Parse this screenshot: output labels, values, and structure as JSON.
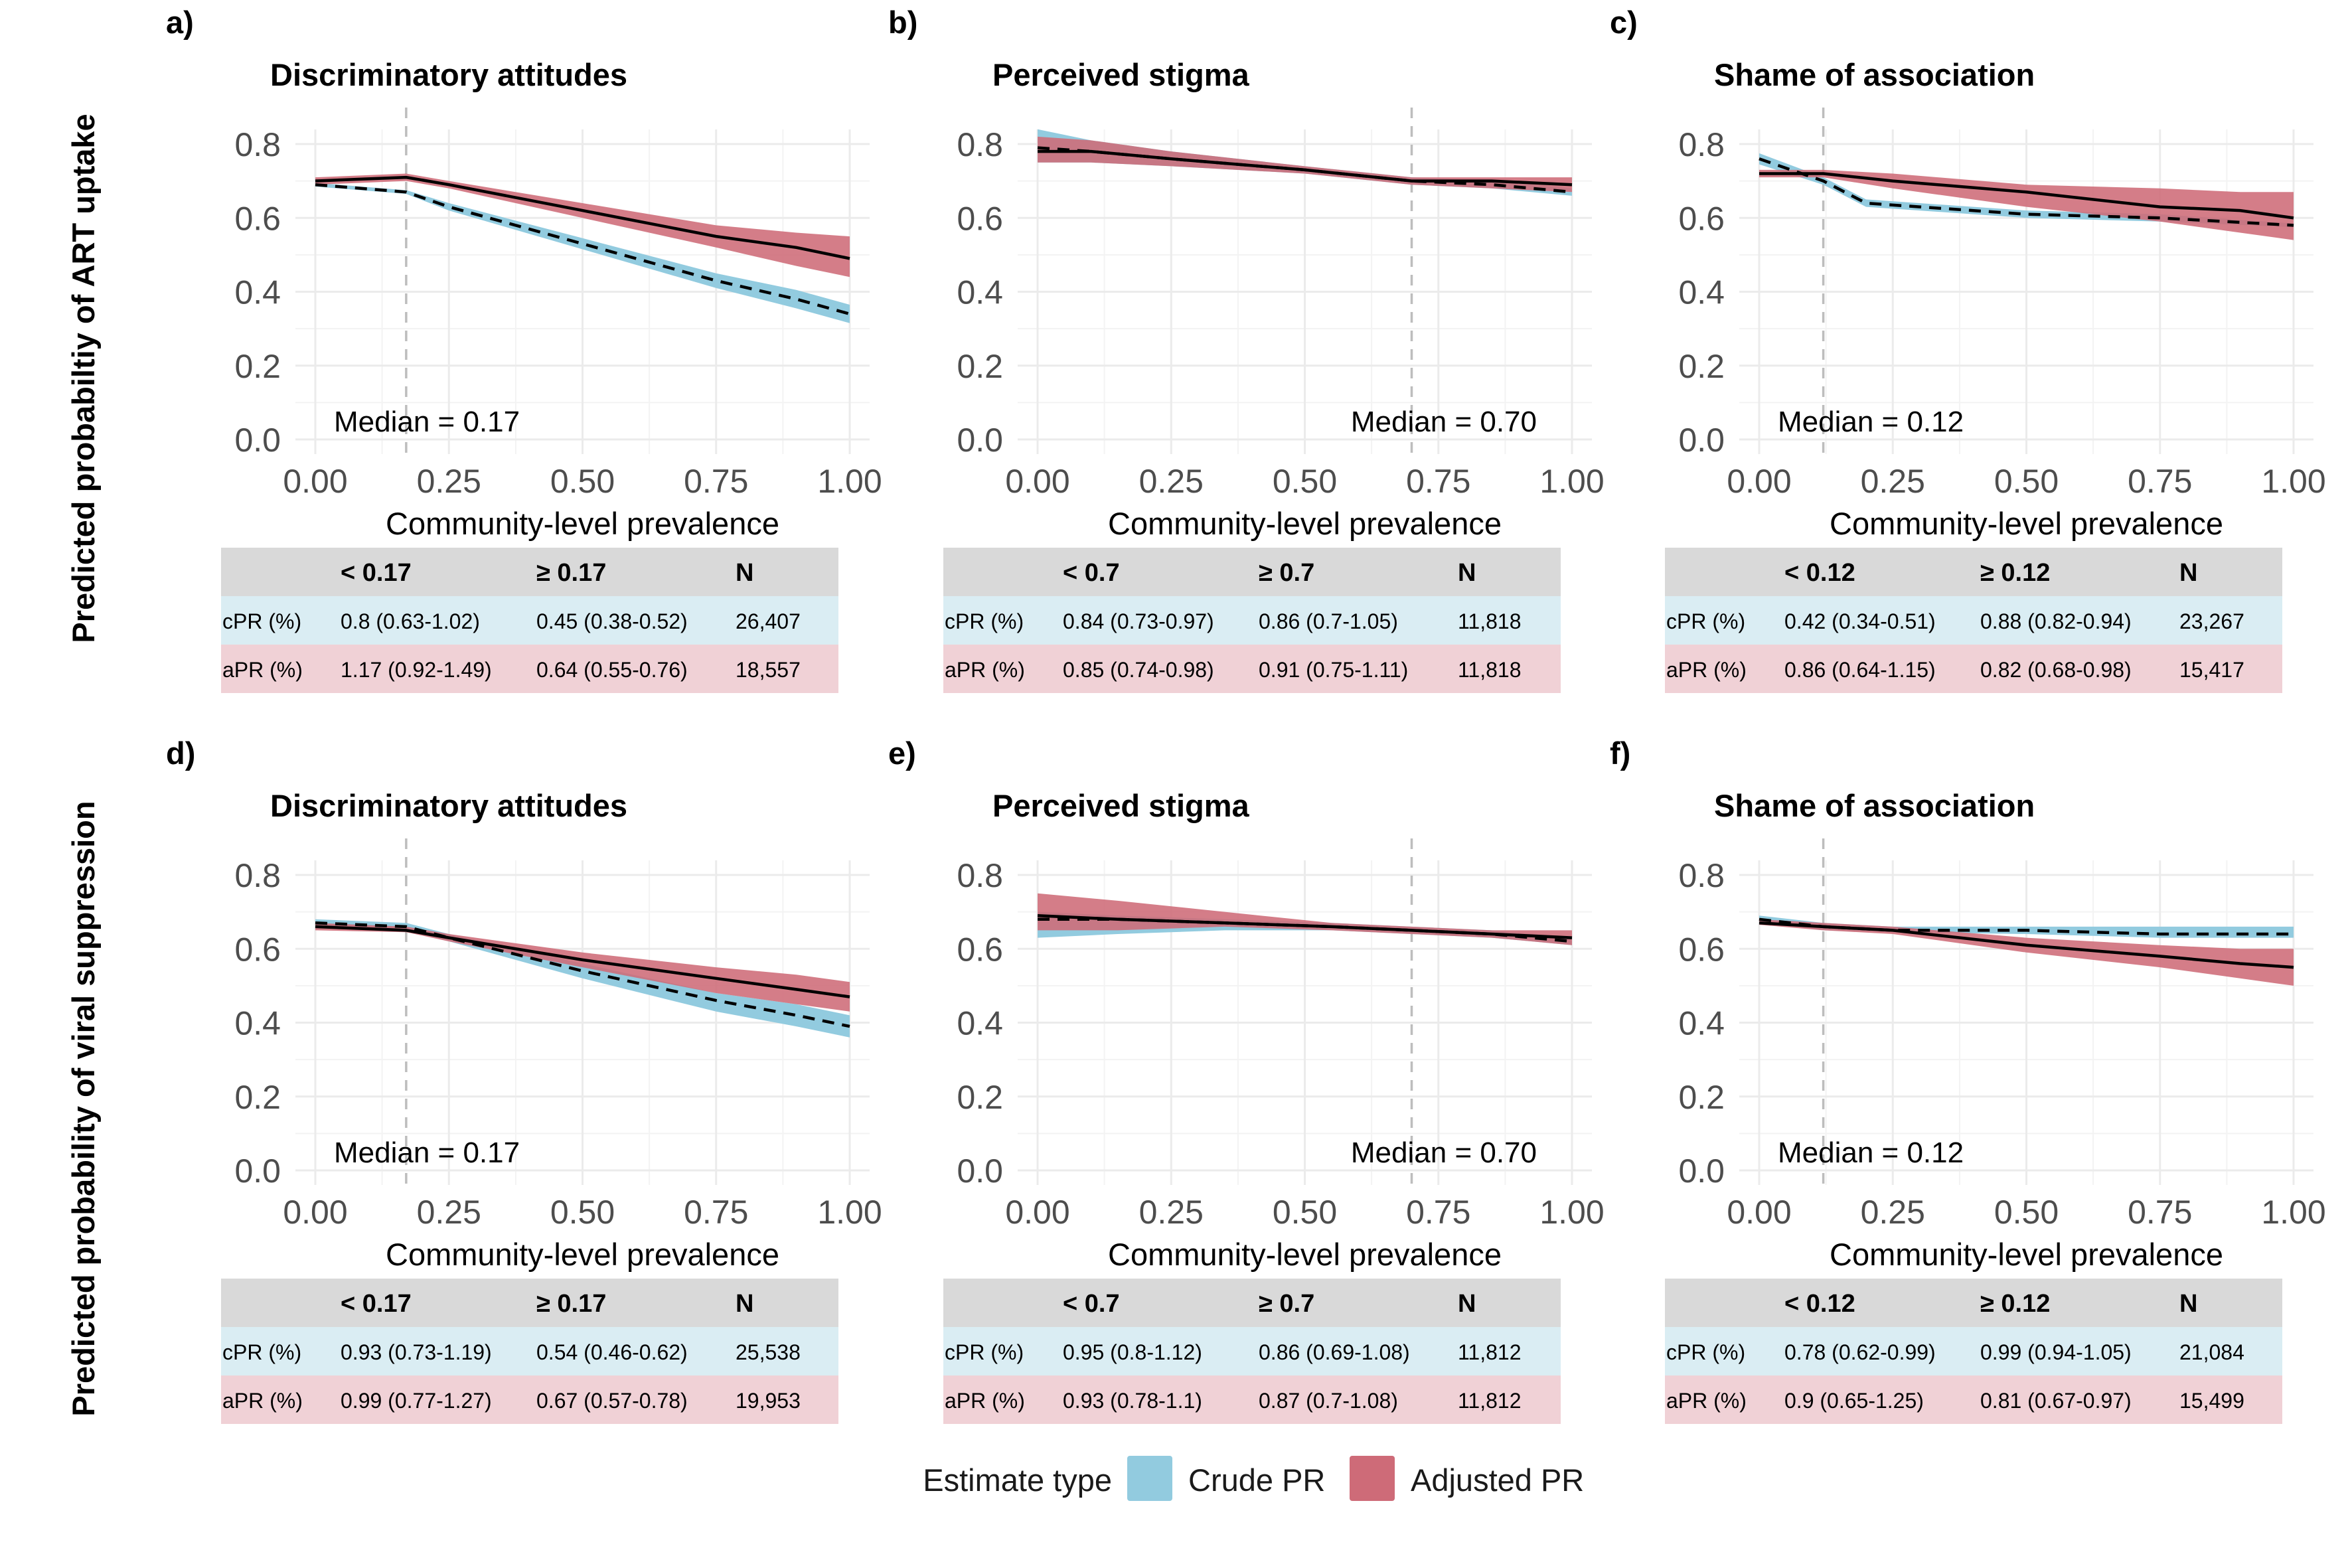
{
  "y_titles": [
    "Predicted probabiltiy of ART uptake",
    "Predicted probability of viral suppression"
  ],
  "legend": {
    "title": "Estimate type",
    "items": [
      {
        "label": "Crude PR",
        "color": "#92CBDF"
      },
      {
        "label": "Adjusted PR",
        "color": "#CE6B78"
      }
    ]
  },
  "colors": {
    "crude": "#92CBDF",
    "adjusted": "#CE6B78",
    "overlap": "#8C4A57",
    "table_header": "#D9D9D9",
    "table_crude": "#DAEDF3",
    "table_adjusted": "#F0D1D6",
    "grid": "#EBEBEB",
    "median_line": "#BDBDBD"
  },
  "chart_data": [
    {
      "type": "area",
      "letter": "a)",
      "title": "Discriminatory attitudes",
      "xlabel": "Community-level prevalence",
      "xlim": [
        0,
        1
      ],
      "ylim": [
        0,
        0.8
      ],
      "x_ticks": [
        "0.00",
        "0.25",
        "0.50",
        "0.75",
        "1.00"
      ],
      "y_ticks": [
        "0.0",
        "0.2",
        "0.4",
        "0.6",
        "0.8"
      ],
      "median": {
        "value": 0.17,
        "label": "Median = 0.17",
        "label_position": "left"
      },
      "series": [
        {
          "name": "Crude PR",
          "x": [
            0,
            0.17,
            0.25,
            0.5,
            0.75,
            0.9,
            1.0
          ],
          "y": [
            0.69,
            0.67,
            0.63,
            0.53,
            0.43,
            0.38,
            0.34
          ],
          "lower": [
            0.685,
            0.665,
            0.62,
            0.515,
            0.41,
            0.355,
            0.315
          ],
          "upper": [
            0.695,
            0.675,
            0.64,
            0.545,
            0.45,
            0.405,
            0.365
          ]
        },
        {
          "name": "Adjusted PR",
          "x": [
            0,
            0.17,
            0.25,
            0.5,
            0.75,
            0.9,
            1.0
          ],
          "y": [
            0.7,
            0.71,
            0.69,
            0.62,
            0.55,
            0.52,
            0.49
          ],
          "lower": [
            0.69,
            0.7,
            0.68,
            0.6,
            0.52,
            0.47,
            0.44
          ],
          "upper": [
            0.71,
            0.72,
            0.7,
            0.64,
            0.58,
            0.56,
            0.55
          ]
        }
      ],
      "table": {
        "headers": [
          "< 0.17",
          "≥ 0.17",
          "N"
        ],
        "rows": [
          {
            "label": "cPR (%)",
            "values": [
              "0.8 (0.63-1.02)",
              "0.45 (0.38-0.52)",
              "26,407"
            ]
          },
          {
            "label": "aPR (%)",
            "values": [
              "1.17 (0.92-1.49)",
              "0.64 (0.55-0.76)",
              "18,557"
            ]
          }
        ]
      }
    },
    {
      "type": "area",
      "letter": "b)",
      "title": "Perceived stigma",
      "xlabel": "Community-level prevalence",
      "xlim": [
        0,
        1
      ],
      "ylim": [
        0,
        0.8
      ],
      "x_ticks": [
        "0.00",
        "0.25",
        "0.50",
        "0.75",
        "1.00"
      ],
      "y_ticks": [
        "0.0",
        "0.2",
        "0.4",
        "0.6",
        "0.8"
      ],
      "median": {
        "value": 0.7,
        "label": "Median = 0.70",
        "label_position": "right"
      },
      "series": [
        {
          "name": "Crude PR",
          "x": [
            0,
            0.1,
            0.25,
            0.5,
            0.7,
            0.85,
            1.0
          ],
          "y": [
            0.79,
            0.78,
            0.76,
            0.73,
            0.7,
            0.69,
            0.67
          ],
          "lower": [
            0.75,
            0.75,
            0.74,
            0.72,
            0.69,
            0.68,
            0.66
          ],
          "upper": [
            0.84,
            0.81,
            0.78,
            0.74,
            0.71,
            0.7,
            0.68
          ]
        },
        {
          "name": "Adjusted PR",
          "x": [
            0,
            0.1,
            0.25,
            0.5,
            0.7,
            0.85,
            1.0
          ],
          "y": [
            0.78,
            0.78,
            0.76,
            0.73,
            0.7,
            0.7,
            0.69
          ],
          "lower": [
            0.75,
            0.75,
            0.74,
            0.72,
            0.69,
            0.68,
            0.67
          ],
          "upper": [
            0.82,
            0.81,
            0.78,
            0.74,
            0.71,
            0.71,
            0.71
          ]
        }
      ],
      "table": {
        "headers": [
          "< 0.7",
          "≥ 0.7",
          "N"
        ],
        "rows": [
          {
            "label": "cPR (%)",
            "values": [
              "0.84 (0.73-0.97)",
              "0.86 (0.7-1.05)",
              "11,818"
            ]
          },
          {
            "label": "aPR (%)",
            "values": [
              "0.85 (0.74-0.98)",
              "0.91 (0.75-1.11)",
              "11,818"
            ]
          }
        ]
      }
    },
    {
      "type": "area",
      "letter": "c)",
      "title": "Shame of association",
      "xlabel": "Community-level prevalence",
      "xlim": [
        0,
        1
      ],
      "ylim": [
        0,
        0.8
      ],
      "x_ticks": [
        "0.00",
        "0.25",
        "0.50",
        "0.75",
        "1.00"
      ],
      "y_ticks": [
        "0.0",
        "0.2",
        "0.4",
        "0.6",
        "0.8"
      ],
      "median": {
        "value": 0.12,
        "label": "Median = 0.12",
        "label_position": "left"
      },
      "series": [
        {
          "name": "Crude PR",
          "x": [
            0,
            0.12,
            0.2,
            0.3,
            0.5,
            0.75,
            1.0
          ],
          "y": [
            0.76,
            0.7,
            0.64,
            0.63,
            0.61,
            0.6,
            0.58
          ],
          "lower": [
            0.745,
            0.69,
            0.63,
            0.62,
            0.6,
            0.59,
            0.575
          ],
          "upper": [
            0.775,
            0.71,
            0.65,
            0.64,
            0.62,
            0.61,
            0.585
          ]
        },
        {
          "name": "Adjusted PR",
          "x": [
            0,
            0.12,
            0.25,
            0.5,
            0.75,
            0.9,
            1.0
          ],
          "y": [
            0.72,
            0.72,
            0.7,
            0.67,
            0.63,
            0.62,
            0.6
          ],
          "lower": [
            0.71,
            0.71,
            0.68,
            0.63,
            0.59,
            0.56,
            0.54
          ],
          "upper": [
            0.73,
            0.73,
            0.72,
            0.69,
            0.68,
            0.67,
            0.67
          ]
        }
      ],
      "table": {
        "headers": [
          "< 0.12",
          "≥ 0.12",
          "N"
        ],
        "rows": [
          {
            "label": "cPR (%)",
            "values": [
              "0.42 (0.34-0.51)",
              "0.88 (0.82-0.94)",
              "23,267"
            ]
          },
          {
            "label": "aPR (%)",
            "values": [
              "0.86 (0.64-1.15)",
              "0.82 (0.68-0.98)",
              "15,417"
            ]
          }
        ]
      }
    },
    {
      "type": "area",
      "letter": "d)",
      "title": "Discriminatory attitudes",
      "xlabel": "Community-level prevalence",
      "xlim": [
        0,
        1
      ],
      "ylim": [
        0,
        0.8
      ],
      "x_ticks": [
        "0.00",
        "0.25",
        "0.50",
        "0.75",
        "1.00"
      ],
      "y_ticks": [
        "0.0",
        "0.2",
        "0.4",
        "0.6",
        "0.8"
      ],
      "median": {
        "value": 0.17,
        "label": "Median = 0.17",
        "label_position": "left"
      },
      "series": [
        {
          "name": "Crude PR",
          "x": [
            0,
            0.17,
            0.25,
            0.5,
            0.75,
            0.9,
            1.0
          ],
          "y": [
            0.67,
            0.66,
            0.63,
            0.54,
            0.46,
            0.42,
            0.39
          ],
          "lower": [
            0.66,
            0.65,
            0.62,
            0.52,
            0.43,
            0.39,
            0.36
          ],
          "upper": [
            0.68,
            0.67,
            0.64,
            0.56,
            0.48,
            0.45,
            0.42
          ]
        },
        {
          "name": "Adjusted PR",
          "x": [
            0,
            0.17,
            0.25,
            0.5,
            0.75,
            0.9,
            1.0
          ],
          "y": [
            0.66,
            0.65,
            0.63,
            0.57,
            0.52,
            0.49,
            0.47
          ],
          "lower": [
            0.65,
            0.645,
            0.62,
            0.55,
            0.48,
            0.45,
            0.43
          ],
          "upper": [
            0.67,
            0.66,
            0.64,
            0.59,
            0.55,
            0.53,
            0.51
          ]
        }
      ],
      "table": {
        "headers": [
          "< 0.17",
          "≥ 0.17",
          "N"
        ],
        "rows": [
          {
            "label": "cPR (%)",
            "values": [
              "0.93 (0.73-1.19)",
              "0.54 (0.46-0.62)",
              "25,538"
            ]
          },
          {
            "label": "aPR (%)",
            "values": [
              "0.99 (0.77-1.27)",
              "0.67 (0.57-0.78)",
              "19,953"
            ]
          }
        ]
      }
    },
    {
      "type": "area",
      "letter": "e)",
      "title": "Perceived stigma",
      "xlabel": "Community-level prevalence",
      "xlim": [
        0,
        1
      ],
      "ylim": [
        0,
        0.8
      ],
      "x_ticks": [
        "0.00",
        "0.25",
        "0.50",
        "0.75",
        "1.00"
      ],
      "y_ticks": [
        "0.0",
        "0.2",
        "0.4",
        "0.6",
        "0.8"
      ],
      "median": {
        "value": 0.7,
        "label": "Median = 0.70",
        "label_position": "right"
      },
      "series": [
        {
          "name": "Crude PR",
          "x": [
            0,
            0.15,
            0.35,
            0.55,
            0.7,
            0.85,
            1.0
          ],
          "y": [
            0.68,
            0.68,
            0.67,
            0.66,
            0.65,
            0.64,
            0.62
          ],
          "lower": [
            0.63,
            0.64,
            0.65,
            0.65,
            0.64,
            0.63,
            0.61
          ],
          "upper": [
            0.7,
            0.69,
            0.68,
            0.67,
            0.66,
            0.65,
            0.63
          ]
        },
        {
          "name": "Adjusted PR",
          "x": [
            0,
            0.15,
            0.35,
            0.55,
            0.7,
            0.85,
            1.0
          ],
          "y": [
            0.69,
            0.68,
            0.67,
            0.66,
            0.65,
            0.64,
            0.63
          ],
          "lower": [
            0.65,
            0.65,
            0.66,
            0.65,
            0.64,
            0.63,
            0.61
          ],
          "upper": [
            0.75,
            0.73,
            0.7,
            0.67,
            0.66,
            0.65,
            0.65
          ]
        }
      ],
      "table": {
        "headers": [
          "< 0.7",
          "≥ 0.7",
          "N"
        ],
        "rows": [
          {
            "label": "cPR (%)",
            "values": [
              "0.95 (0.8-1.12)",
              "0.86 (0.69-1.08)",
              "11,812"
            ]
          },
          {
            "label": "aPR (%)",
            "values": [
              "0.93 (0.78-1.1)",
              "0.87 (0.7-1.08)",
              "11,812"
            ]
          }
        ]
      }
    },
    {
      "type": "area",
      "letter": "f)",
      "title": "Shame of association",
      "xlabel": "Community-level prevalence",
      "xlim": [
        0,
        1
      ],
      "ylim": [
        0,
        0.8
      ],
      "x_ticks": [
        "0.00",
        "0.25",
        "0.50",
        "0.75",
        "1.00"
      ],
      "y_ticks": [
        "0.0",
        "0.2",
        "0.4",
        "0.6",
        "0.8"
      ],
      "median": {
        "value": 0.12,
        "label": "Median = 0.12",
        "label_position": "left"
      },
      "series": [
        {
          "name": "Crude PR",
          "x": [
            0,
            0.12,
            0.25,
            0.5,
            0.75,
            1.0
          ],
          "y": [
            0.68,
            0.66,
            0.65,
            0.65,
            0.64,
            0.64
          ],
          "lower": [
            0.67,
            0.65,
            0.645,
            0.64,
            0.63,
            0.63
          ],
          "upper": [
            0.69,
            0.67,
            0.66,
            0.66,
            0.66,
            0.66
          ]
        },
        {
          "name": "Adjusted PR",
          "x": [
            0,
            0.12,
            0.25,
            0.5,
            0.75,
            0.9,
            1.0
          ],
          "y": [
            0.67,
            0.66,
            0.65,
            0.61,
            0.58,
            0.56,
            0.55
          ],
          "lower": [
            0.665,
            0.65,
            0.64,
            0.59,
            0.55,
            0.52,
            0.5
          ],
          "upper": [
            0.68,
            0.67,
            0.66,
            0.63,
            0.61,
            0.6,
            0.6
          ]
        }
      ],
      "table": {
        "headers": [
          "< 0.12",
          "≥ 0.12",
          "N"
        ],
        "rows": [
          {
            "label": "cPR (%)",
            "values": [
              "0.78 (0.62-0.99)",
              "0.99 (0.94-1.05)",
              "21,084"
            ]
          },
          {
            "label": "aPR (%)",
            "values": [
              "0.9 (0.65-1.25)",
              "0.81 (0.67-0.97)",
              "15,499"
            ]
          }
        ]
      }
    }
  ]
}
